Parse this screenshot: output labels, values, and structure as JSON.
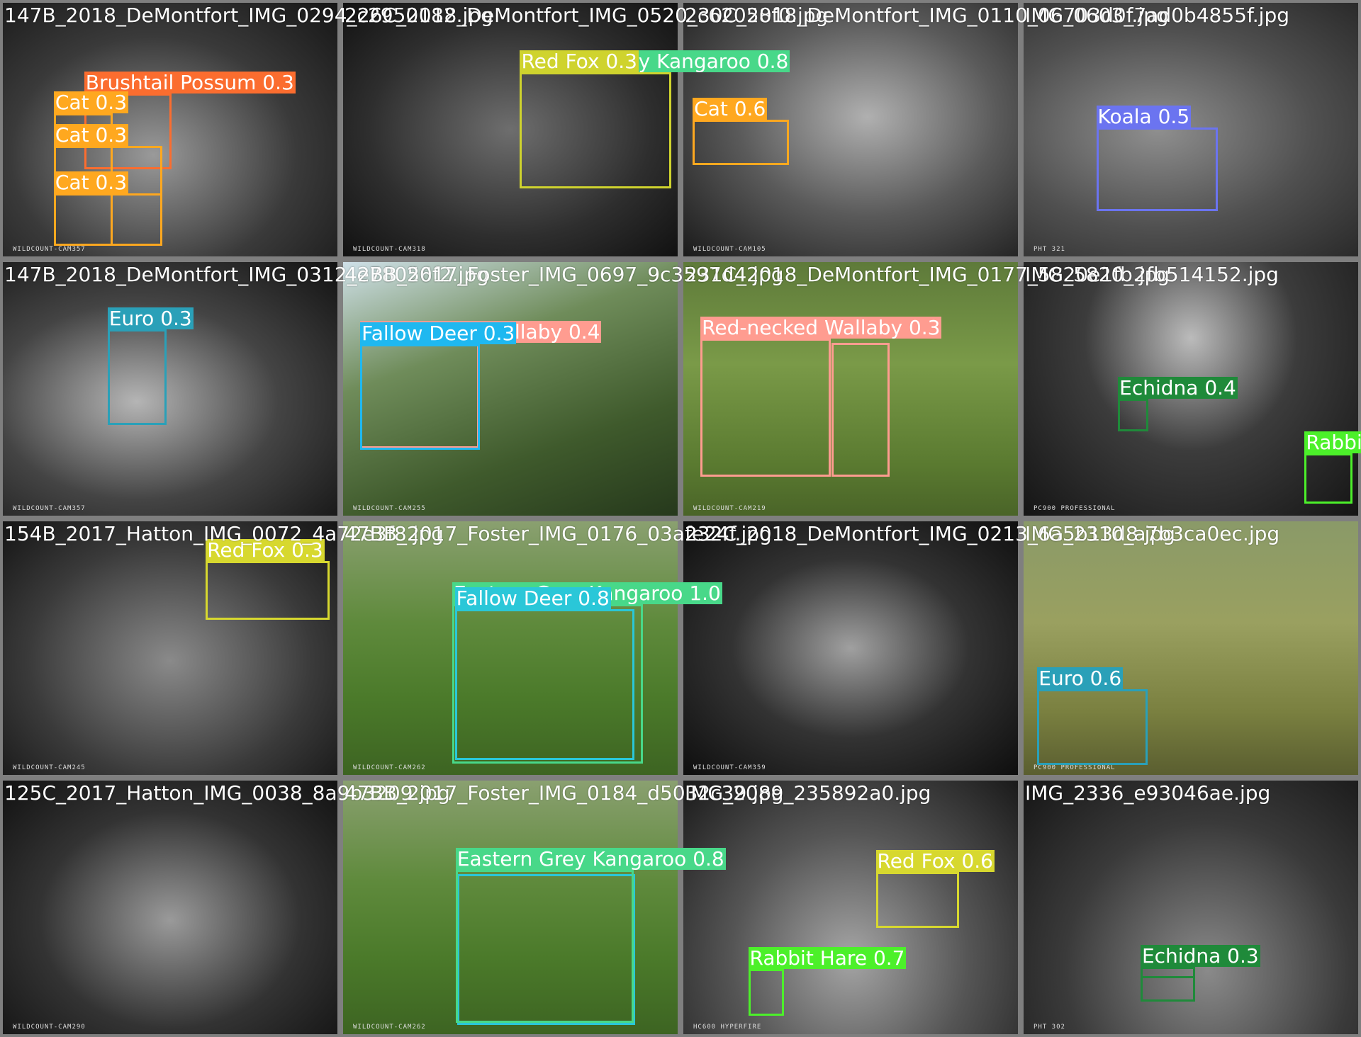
{
  "tiles": [
    {
      "filename": "147B_2018_DeMontfort_IMG_0294_c2950182.jpg",
      "stamp": "WILDCOUNT-CAM357",
      "detections": [
        {
          "label": "Brushtail Possum 0.3"
        },
        {
          "label": "Cat 0.3"
        },
        {
          "label": "Cat 0.3"
        },
        {
          "label": "Cat 0.3"
        }
      ]
    },
    {
      "filename": "226C_2018_DeMontfort_IMG_0520_c62058f0.jpg",
      "stamp": "WILDCOUNT-CAM318",
      "detections": [
        {
          "label": "Eastern Grey Kangaroo 0.8"
        },
        {
          "label": "Red Fox 0.3"
        }
      ]
    },
    {
      "filename": "230C_2018_DeMontfort_IMG_0110_06703d0f.jpg",
      "stamp": "WILDCOUNT-CAM105",
      "detections": [
        {
          "label": "Cat 0.6"
        }
      ]
    },
    {
      "filename": "IMG_0603_7ad0b4855f.jpg",
      "stamp": "PHT 321",
      "detections": [
        {
          "label": "Koala 0.5"
        }
      ]
    },
    {
      "filename": "147B_2018_DeMontfort_IMG_0312_e78056f2.jpg",
      "stamp": "WILDCOUNT-CAM357",
      "detections": [
        {
          "label": "Euro 0.3"
        }
      ]
    },
    {
      "filename": "42BB_2017_Foster_IMG_0697_9c3597d4.jpg",
      "stamp": "WILDCOUNT-CAM255",
      "detections": [
        {
          "label": "Red-necked Wallaby 0.4"
        },
        {
          "label": "Fallow Deer 0.3"
        }
      ]
    },
    {
      "filename": "231C_2018_DeMontfort_IMG_0177_5820e1fb.jpg",
      "stamp": "WILDCOUNT-CAM219",
      "detections": [
        {
          "label": "Red-necked Wallaby 0.3"
        }
      ]
    },
    {
      "filename": "IMG_5820_2fb514152.jpg",
      "stamp": "PC900 PROFESSIONAL",
      "detections": [
        {
          "label": "Echidna 0.4"
        },
        {
          "label": "Rabbit Hare"
        }
      ]
    },
    {
      "filename": "154B_2017_Hatton_IMG_0072_4a72e3f8.jpg",
      "stamp": "WILDCOUNT-CAM245",
      "detections": [
        {
          "label": "Red Fox 0.3"
        }
      ]
    },
    {
      "filename": "47BB_2017_Foster_IMG_0176_03afe24f.jpg",
      "stamp": "WILDCOUNT-CAM262",
      "detections": [
        {
          "label": "Eastern Grey Kangaroo 1.0"
        },
        {
          "label": "Fallow Deer 0.8"
        }
      ]
    },
    {
      "filename": "232C_2018_DeMontfort_IMG_0213_6a5b13d8.jpg",
      "stamp": "WILDCOUNT-CAM359",
      "detections": []
    },
    {
      "filename": "IMG_2310_a7b3ca0ec.jpg",
      "stamp": "PC900 PROFESSIONAL",
      "detections": [
        {
          "label": "Euro 0.6"
        }
      ]
    },
    {
      "filename": "125C_2017_Hatton_IMG_0038_8a9b3209.jpg",
      "stamp": "WILDCOUNT-CAM290",
      "detections": []
    },
    {
      "filename": "47BB_2017_Foster_IMG_0184_d5032c39.jpg",
      "stamp": "WILDCOUNT-CAM262",
      "detections": [
        {
          "label": "Eastern Grey Kangaroo 0.8"
        }
      ]
    },
    {
      "filename": "IMG_2089_235892a0.jpg",
      "stamp": "HC600 HYPERFIRE",
      "detections": [
        {
          "label": "Red Fox 0.6"
        },
        {
          "label": "Rabbit Hare 0.7"
        }
      ]
    },
    {
      "filename": "IMG_2336_e93046ae.jpg",
      "stamp": "PHT 302",
      "detections": [
        {
          "label": "Echidna 0.3"
        }
      ]
    }
  ]
}
